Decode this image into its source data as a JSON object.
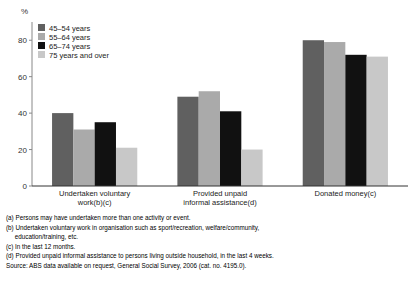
{
  "chart_data": {
    "type": "bar",
    "categories": [
      "Undertaken voluntary\nwork(b)(c)",
      "Provided unpaid\ninformal assistance(d)",
      "Donated money(c)"
    ],
    "series": [
      {
        "name": "45–54 years",
        "color": "#606060",
        "values": [
          40,
          49,
          80
        ]
      },
      {
        "name": "55–64 years",
        "color": "#aaaaaa",
        "values": [
          31,
          52,
          79
        ]
      },
      {
        "name": "65–74 years",
        "color": "#111111",
        "values": [
          35,
          41,
          72
        ]
      },
      {
        "name": "75 years and over",
        "color": "#c8c8c8",
        "values": [
          21,
          20,
          71
        ]
      }
    ],
    "ylabel": "%",
    "ylim": [
      0,
      90
    ],
    "yticks": [
      0,
      20,
      40,
      60,
      80
    ],
    "grid": false,
    "legend": "upper left",
    "annotations": [
      "(a) Persons may have undertaken more than one activity or event.",
      "(b) Undertaken voluntary work in organisation such as sport/recreation, welfare/community,",
      "     education/training, etc.",
      "(c) In the last 12 months.",
      "(d) Provided unpaid informal assistance to persons living outside household, in the last 4 weeks.",
      "Source: ABS data available on request, General Social Survey, 2006 (cat. no. 4195.0)."
    ]
  }
}
